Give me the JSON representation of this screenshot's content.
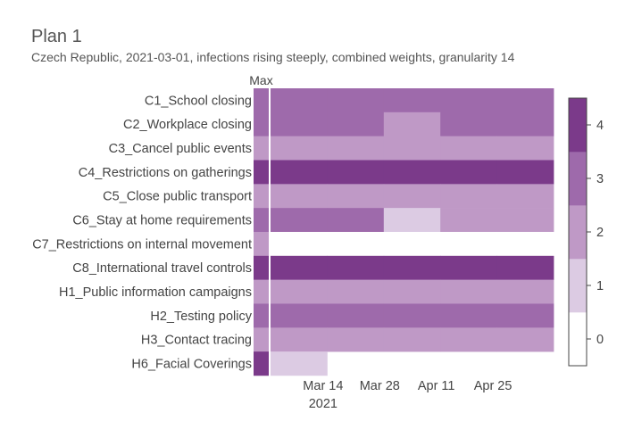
{
  "chart_data": {
    "type": "heatmap",
    "title": "Plan 1",
    "subtitle": "Czech Republic, 2021-03-01, infections rising steeply, combined weights, granularity 14",
    "max_label": "Max",
    "rows": [
      "C1_School closing",
      "C2_Workplace closing",
      "C3_Cancel public events",
      "C4_Restrictions on gatherings",
      "C5_Close public transport",
      "C6_Stay at home requirements",
      "C7_Restrictions on internal movement",
      "C8_International travel controls",
      "H1_Public information campaigns",
      "H2_Testing policy",
      "H3_Contact tracing",
      "H6_Facial Coverings"
    ],
    "max_values": [
      3,
      3,
      2,
      4,
      2,
      3,
      2,
      4,
      2,
      3,
      2,
      4
    ],
    "periods": [
      "2021-03-01",
      "2021-03-15",
      "2021-03-29",
      "2021-04-12",
      "2021-04-26"
    ],
    "period_days": 14,
    "values": [
      [
        3,
        3,
        3,
        3,
        3
      ],
      [
        3,
        3,
        2,
        3,
        3
      ],
      [
        2,
        2,
        2,
        2,
        2
      ],
      [
        4,
        4,
        4,
        4,
        4
      ],
      [
        2,
        2,
        2,
        2,
        2
      ],
      [
        3,
        3,
        1,
        2,
        2
      ],
      [
        0,
        0,
        0,
        0,
        0
      ],
      [
        4,
        4,
        4,
        4,
        4
      ],
      [
        2,
        2,
        2,
        2,
        2
      ],
      [
        3,
        3,
        3,
        3,
        3
      ],
      [
        2,
        2,
        2,
        2,
        2
      ],
      [
        1,
        null,
        null,
        null,
        null
      ]
    ],
    "x_ticks": [
      {
        "label": "Mar 14",
        "date": "2021-03-14",
        "sublabel": "2021"
      },
      {
        "label": "Mar 28",
        "date": "2021-03-28"
      },
      {
        "label": "Apr 11",
        "date": "2021-04-11"
      },
      {
        "label": "Apr 25",
        "date": "2021-04-25"
      }
    ],
    "colorscale": [
      {
        "value": 0,
        "color": "#ffffff"
      },
      {
        "value": 1,
        "color": "#dccbe3"
      },
      {
        "value": 2,
        "color": "#bf99c6"
      },
      {
        "value": 3,
        "color": "#9e6aab"
      },
      {
        "value": 4,
        "color": "#7b3a8a"
      }
    ],
    "colorbar_ticks": [
      "0",
      "1",
      "2",
      "3",
      "4"
    ],
    "zrange": [
      0,
      4
    ]
  }
}
